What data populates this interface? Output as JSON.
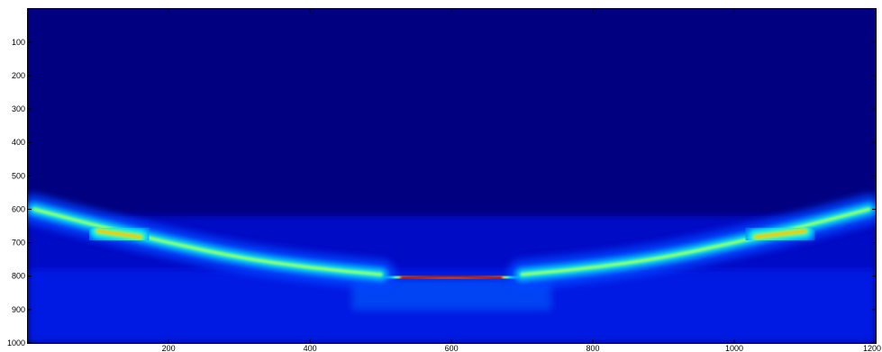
{
  "chart_data": {
    "type": "heatmap",
    "title": "",
    "xlabel": "",
    "ylabel": "",
    "xlim": [
      1,
      1200
    ],
    "ylim": [
      1,
      1000
    ],
    "y_reversed": true,
    "grid": false,
    "colormap": "jet",
    "background_color": "#000080",
    "x_ticks": [
      {
        "value": 200,
        "label": "200"
      },
      {
        "value": 400,
        "label": "400"
      },
      {
        "value": 600,
        "label": "600"
      },
      {
        "value": 800,
        "label": "800"
      },
      {
        "value": 1000,
        "label": "1000"
      },
      {
        "value": 1200,
        "label": "1200"
      }
    ],
    "y_ticks": [
      {
        "value": 100,
        "label": "100"
      },
      {
        "value": 200,
        "label": "200"
      },
      {
        "value": 300,
        "label": "300"
      },
      {
        "value": 400,
        "label": "400"
      },
      {
        "value": 500,
        "label": "500"
      },
      {
        "value": 600,
        "label": "600"
      },
      {
        "value": 700,
        "label": "700"
      },
      {
        "value": 800,
        "label": "800"
      },
      {
        "value": 900,
        "label": "900"
      },
      {
        "value": 1000,
        "label": "1000"
      }
    ],
    "features": [
      {
        "name": "left-arc",
        "points": [
          [
            10,
            600
          ],
          [
            100,
            650
          ],
          [
            200,
            700
          ],
          [
            300,
            745
          ],
          [
            400,
            775
          ],
          [
            500,
            795
          ]
        ],
        "intensity": 0.55
      },
      {
        "name": "right-arc",
        "points": [
          [
            700,
            795
          ],
          [
            800,
            775
          ],
          [
            900,
            745
          ],
          [
            1000,
            700
          ],
          [
            1100,
            650
          ],
          [
            1190,
            600
          ]
        ],
        "intensity": 0.55
      },
      {
        "name": "center-band",
        "points": [
          [
            530,
            805
          ],
          [
            600,
            800
          ],
          [
            670,
            805
          ]
        ],
        "intensity": 1.0
      },
      {
        "name": "left-hotspot",
        "points": [
          [
            100,
            665
          ],
          [
            160,
            683
          ]
        ],
        "intensity": 0.72
      },
      {
        "name": "right-hotspot",
        "points": [
          [
            1030,
            683
          ],
          [
            1100,
            665
          ]
        ],
        "intensity": 0.72
      }
    ]
  }
}
